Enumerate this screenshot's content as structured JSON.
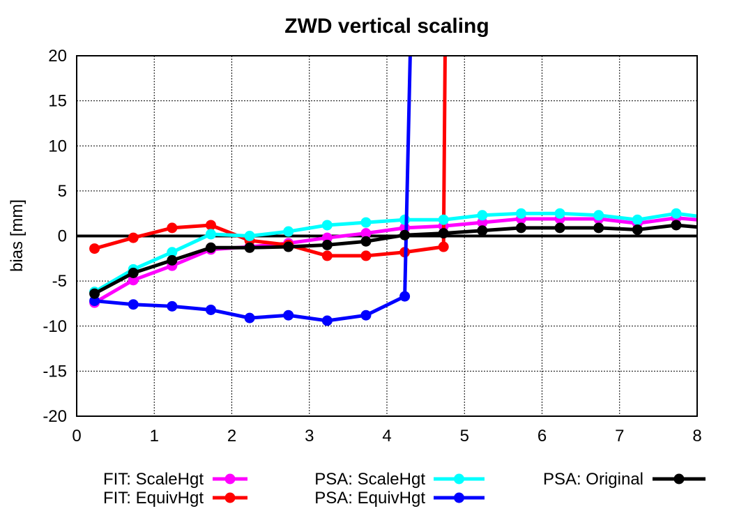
{
  "chart_data": {
    "type": "line",
    "title": "ZWD vertical scaling",
    "xlabel": "",
    "ylabel": "bias [mm]",
    "xlim": [
      0,
      8
    ],
    "ylim": [
      -20,
      20
    ],
    "xticks": [
      "0",
      "1",
      "2",
      "3",
      "4",
      "5",
      "6",
      "7",
      "8"
    ],
    "yticks": [
      "20",
      "15",
      "10",
      "5",
      "0",
      "-5",
      "-10",
      "-15",
      "-20"
    ],
    "grid": true,
    "legend_position": "bottom",
    "series": [
      {
        "name": "FIT: ScaleHgt",
        "color": "#ff00ff",
        "x": [
          0.23,
          0.73,
          1.23,
          1.73,
          2.23,
          2.73,
          3.23,
          3.73,
          4.23,
          4.73,
          5.23,
          5.73,
          6.23,
          6.73,
          7.23,
          7.73,
          8.0
        ],
        "y": [
          -7.4,
          -4.9,
          -3.3,
          -1.5,
          -1.2,
          -0.8,
          -0.2,
          0.3,
          0.9,
          1.1,
          1.5,
          1.9,
          1.9,
          1.9,
          1.4,
          2.0,
          1.8
        ]
      },
      {
        "name": "FIT: EquivHgt",
        "color": "#ff0000",
        "x": [
          0.23,
          0.73,
          1.23,
          1.73,
          2.23,
          2.73,
          3.23,
          3.73,
          4.23,
          4.73
        ],
        "y": [
          -1.4,
          -0.2,
          0.9,
          1.2,
          -0.5,
          -1.0,
          -2.2,
          -2.2,
          -1.8,
          -1.2
        ],
        "spike_x": 4.75
      },
      {
        "name": "PSA: ScaleHgt",
        "color": "#00ffff",
        "x": [
          0.23,
          0.73,
          1.23,
          1.73,
          2.23,
          2.73,
          3.23,
          3.73,
          4.23,
          4.73,
          5.23,
          5.73,
          6.23,
          6.73,
          7.23,
          7.73,
          8.0
        ],
        "y": [
          -6.2,
          -3.7,
          -1.8,
          0.2,
          0.0,
          0.5,
          1.2,
          1.5,
          1.8,
          1.8,
          2.3,
          2.5,
          2.5,
          2.3,
          1.8,
          2.5,
          2.2
        ]
      },
      {
        "name": "PSA: EquivHgt",
        "color": "#0000ff",
        "x": [
          0.23,
          0.73,
          1.23,
          1.73,
          2.23,
          2.73,
          3.23,
          3.73,
          4.23
        ],
        "y": [
          -7.2,
          -7.6,
          -7.8,
          -8.2,
          -9.1,
          -8.8,
          -9.4,
          -8.8,
          -6.7
        ],
        "spike_x": 4.3
      },
      {
        "name": "PSA: Original",
        "color": "#000000",
        "x": [
          0.23,
          0.73,
          1.23,
          1.73,
          2.23,
          2.73,
          3.23,
          3.73,
          4.23,
          4.73,
          5.23,
          5.73,
          6.23,
          6.73,
          7.23,
          7.73,
          8.0
        ],
        "y": [
          -6.4,
          -4.1,
          -2.7,
          -1.3,
          -1.3,
          -1.2,
          -1.0,
          -0.6,
          0.1,
          0.3,
          0.6,
          0.9,
          0.9,
          0.9,
          0.7,
          1.2,
          1.0
        ]
      }
    ]
  }
}
